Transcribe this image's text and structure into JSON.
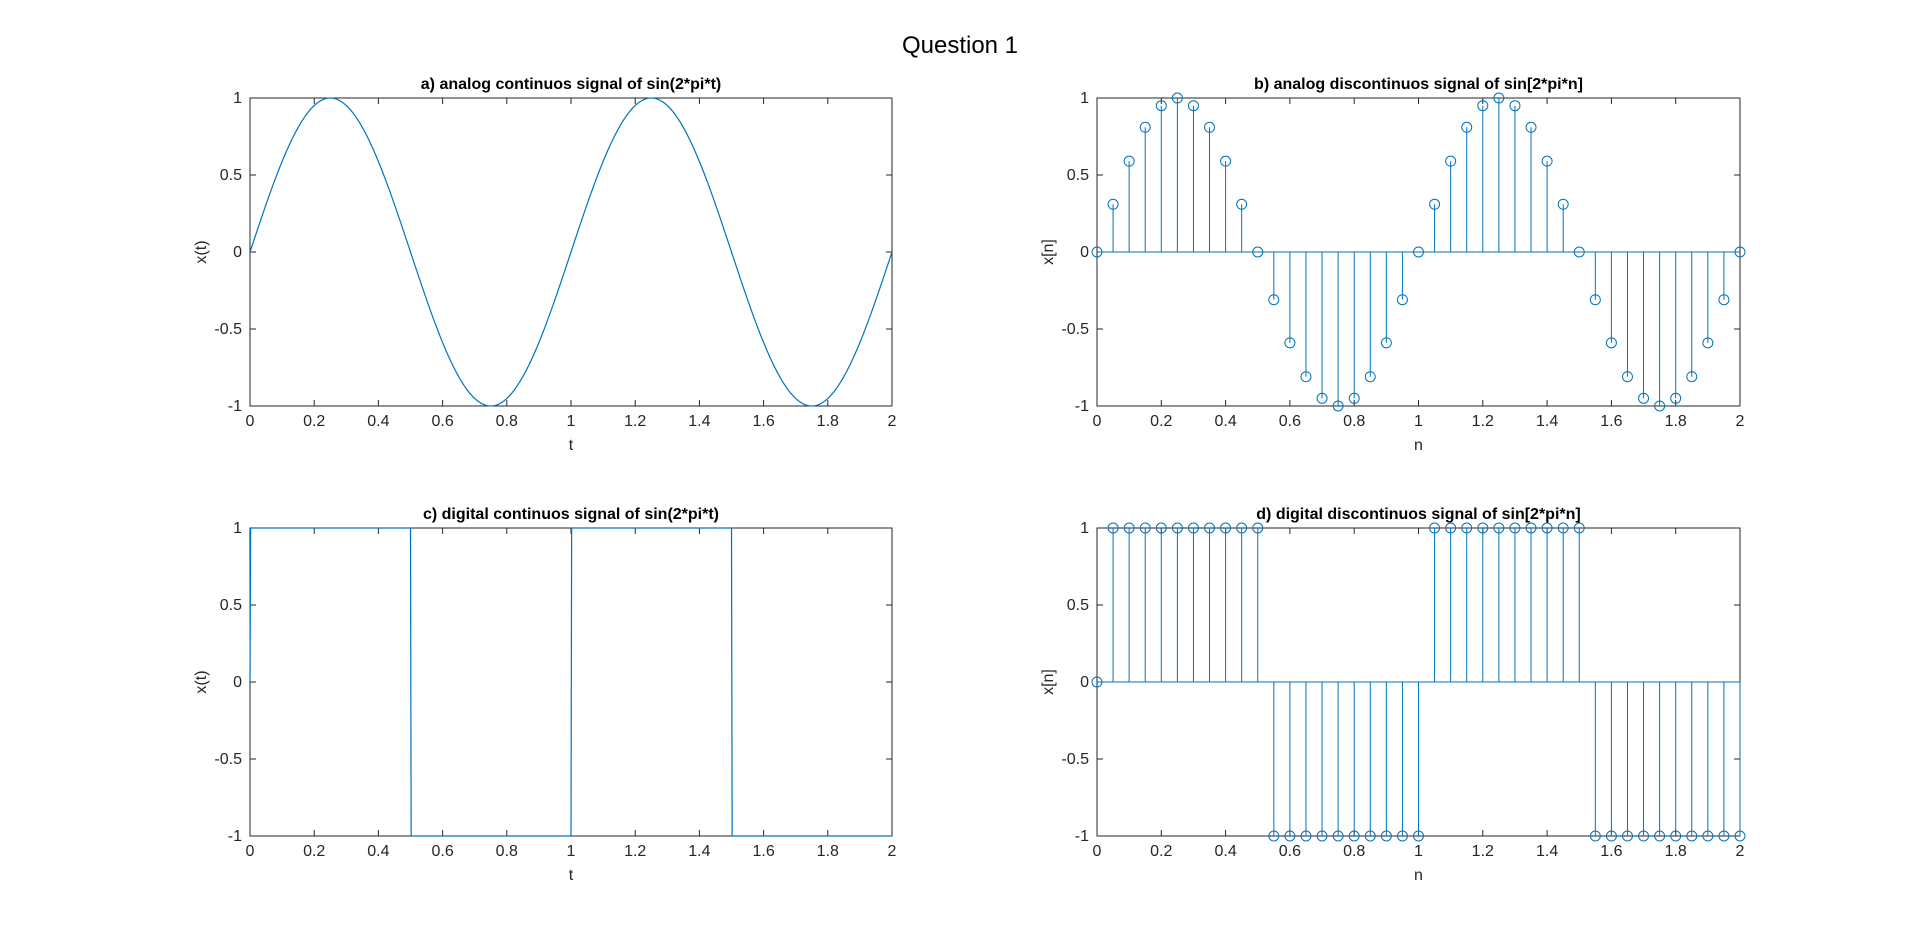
{
  "figure": {
    "title": "Question 1"
  },
  "colors": {
    "series": "#0072BD",
    "axes": "#262626",
    "background": "#ffffff"
  },
  "chart_data": [
    {
      "id": "a",
      "type": "line",
      "title": "a) analog continuos signal of sin(2*pi*t)",
      "xlabel": "t",
      "ylabel": "x(t)",
      "xlim": [
        0,
        2
      ],
      "ylim": [
        -1,
        1
      ],
      "xticks": [
        "0",
        "0.2",
        "0.4",
        "0.6",
        "0.8",
        "1",
        "1.2",
        "1.4",
        "1.6",
        "1.8",
        "2"
      ],
      "yticks": [
        "-1",
        "-0.5",
        "0",
        "0.5",
        "1"
      ],
      "series": [
        {
          "function": "sin(2*pi*t)",
          "x_range": [
            0,
            2
          ]
        }
      ]
    },
    {
      "id": "b",
      "type": "stem",
      "title": "b) analog discontinuos signal of sin[2*pi*n]",
      "xlabel": "n",
      "ylabel": "x[n]",
      "xlim": [
        0,
        2
      ],
      "ylim": [
        -1,
        1
      ],
      "xticks": [
        "0",
        "0.2",
        "0.4",
        "0.6",
        "0.8",
        "1",
        "1.2",
        "1.4",
        "1.6",
        "1.8",
        "2"
      ],
      "yticks": [
        "-1",
        "-0.5",
        "0",
        "0.5",
        "1"
      ],
      "series": [
        {
          "x": [
            0,
            0.05,
            0.1,
            0.15,
            0.2,
            0.25,
            0.3,
            0.35,
            0.4,
            0.45,
            0.5,
            0.55,
            0.6,
            0.65,
            0.7,
            0.75,
            0.8,
            0.85,
            0.9,
            0.95,
            1,
            1.05,
            1.1,
            1.15,
            1.2,
            1.25,
            1.3,
            1.35,
            1.4,
            1.45,
            1.5,
            1.55,
            1.6,
            1.65,
            1.7,
            1.75,
            1.8,
            1.85,
            1.9,
            1.95,
            2
          ],
          "y": [
            0,
            0.31,
            0.59,
            0.81,
            0.95,
            1,
            0.95,
            0.81,
            0.59,
            0.31,
            0,
            -0.31,
            -0.59,
            -0.81,
            -0.95,
            -1,
            -0.95,
            -0.81,
            -0.59,
            -0.31,
            0,
            0.31,
            0.59,
            0.81,
            0.95,
            1,
            0.95,
            0.81,
            0.59,
            0.31,
            0,
            -0.31,
            -0.59,
            -0.81,
            -0.95,
            -1,
            -0.95,
            -0.81,
            -0.59,
            -0.31,
            0
          ]
        }
      ]
    },
    {
      "id": "c",
      "type": "line",
      "title": "c) digital continuos signal of sin(2*pi*t)",
      "xlabel": "t",
      "ylabel": "x(t)",
      "xlim": [
        0,
        2
      ],
      "ylim": [
        -1,
        1
      ],
      "xticks": [
        "0",
        "0.2",
        "0.4",
        "0.6",
        "0.8",
        "1",
        "1.2",
        "1.4",
        "1.6",
        "1.8",
        "2"
      ],
      "yticks": [
        "-1",
        "-0.5",
        "0",
        "0.5",
        "1"
      ],
      "series": [
        {
          "x": [
            0,
            0.002,
            0.5,
            0.502,
            1,
            1.002,
            1.5,
            1.502,
            2
          ],
          "y": [
            0,
            1,
            1,
            -1,
            -1,
            1,
            1,
            -1,
            -1
          ]
        }
      ]
    },
    {
      "id": "d",
      "type": "stem",
      "title": "d) digital discontinuos signal of sin[2*pi*n]",
      "xlabel": "n",
      "ylabel": "x[n]",
      "xlim": [
        0,
        2
      ],
      "ylim": [
        -1,
        1
      ],
      "xticks": [
        "0",
        "0.2",
        "0.4",
        "0.6",
        "0.8",
        "1",
        "1.2",
        "1.4",
        "1.6",
        "1.8",
        "2"
      ],
      "yticks": [
        "-1",
        "-0.5",
        "0",
        "0.5",
        "1"
      ],
      "series": [
        {
          "x": [
            0,
            0.05,
            0.1,
            0.15,
            0.2,
            0.25,
            0.3,
            0.35,
            0.4,
            0.45,
            0.5,
            0.55,
            0.6,
            0.65,
            0.7,
            0.75,
            0.8,
            0.85,
            0.9,
            0.95,
            1,
            1.05,
            1.1,
            1.15,
            1.2,
            1.25,
            1.3,
            1.35,
            1.4,
            1.45,
            1.5,
            1.55,
            1.6,
            1.65,
            1.7,
            1.75,
            1.8,
            1.85,
            1.9,
            1.95,
            2
          ],
          "y": [
            0,
            1,
            1,
            1,
            1,
            1,
            1,
            1,
            1,
            1,
            1,
            -1,
            -1,
            -1,
            -1,
            -1,
            -1,
            -1,
            -1,
            -1,
            -1,
            1,
            1,
            1,
            1,
            1,
            1,
            1,
            1,
            1,
            1,
            -1,
            -1,
            -1,
            -1,
            -1,
            -1,
            -1,
            -1,
            -1,
            -1
          ]
        }
      ]
    }
  ]
}
